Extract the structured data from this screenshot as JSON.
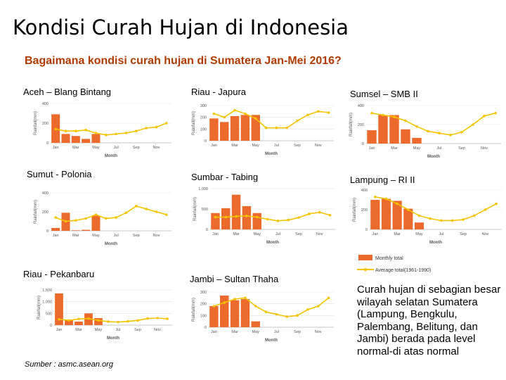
{
  "title": "Kondisi Curah Hujan di Indonesia",
  "subtitle": "Bagaimana kondisi curah hujan di Sumatera Jan-Mei 2016?",
  "legend": [
    "Monthly total",
    "Average total(1961-1990)"
  ],
  "note": "Curah hujan di sebagian besar wilayah selatan Sumatera (Lampung, Bengkulu, Palembang, Belitung, dan Jambi) berada pada level normal-di atas normal",
  "source": "Sumber : asmc.asean.org",
  "chart_data": [
    {
      "type": "bar-line",
      "title": "Aceh – Blang Bintang",
      "y_label": "Rainfall(mm)",
      "x_label": "Month",
      "categories": [
        "Jan",
        null,
        "Mar",
        null,
        "May",
        null,
        "Jul",
        null,
        "Sep",
        null,
        "Nov",
        null
      ],
      "ylim": [
        0,
        400
      ],
      "yticks": [
        0,
        200,
        400
      ],
      "series": [
        {
          "color": "#ec6a2c",
          "values": [
            290,
            90,
            70,
            40,
            90,
            null,
            null,
            null,
            null,
            null,
            null,
            null
          ]
        },
        {
          "color": "#f5c400",
          "values": [
            140,
            120,
            120,
            130,
            100,
            80,
            90,
            100,
            120,
            150,
            160,
            200
          ]
        }
      ]
    },
    {
      "type": "bar-line",
      "title": "Riau - Japura",
      "y_label": "Rainfall(mm)",
      "x_label": "Month",
      "categories": [
        "Jan",
        null,
        "Mar",
        null,
        "May",
        null,
        "Jul",
        null,
        "Sep",
        null,
        "Nov",
        null
      ],
      "ylim": [
        0,
        300
      ],
      "yticks": [
        0,
        100,
        200,
        300
      ],
      "series": [
        {
          "color": "#ec6a2c",
          "values": [
            190,
            160,
            210,
            220,
            220,
            null,
            null,
            null,
            null,
            null,
            null,
            null
          ]
        },
        {
          "color": "#f5c400",
          "values": [
            230,
            200,
            260,
            230,
            190,
            110,
            110,
            110,
            170,
            220,
            250,
            240
          ]
        }
      ]
    },
    {
      "type": "bar-line",
      "title": "Sumsel – SMB II",
      "y_label": "Rainfall(mm)",
      "x_label": "Month",
      "categories": [
        "Jan",
        null,
        "Mar",
        null,
        "May",
        null,
        "Jul",
        null,
        "Sep",
        null,
        "Nov",
        null
      ],
      "ylim": [
        0,
        400
      ],
      "yticks": [
        0,
        200,
        400
      ],
      "series": [
        {
          "color": "#ec6a2c",
          "values": [
            140,
            300,
            300,
            150,
            60,
            null,
            null,
            null,
            null,
            null,
            null,
            null
          ]
        },
        {
          "color": "#f5c400",
          "values": [
            320,
            300,
            280,
            240,
            180,
            130,
            110,
            90,
            120,
            200,
            290,
            320
          ]
        }
      ]
    },
    {
      "type": "bar-line",
      "title": "Sumut - Polonia",
      "y_label": "Rainfall(mm)",
      "x_label": "Month",
      "categories": [
        "Jan",
        null,
        "Mar",
        null,
        "May",
        null,
        "Jul",
        null,
        "Sep",
        null,
        "Nov",
        null
      ],
      "ylim": [
        0,
        400
      ],
      "yticks": [
        0,
        200,
        400
      ],
      "series": [
        {
          "color": "#ec6a2c",
          "values": [
            30,
            190,
            5,
            10,
            160,
            null,
            null,
            null,
            null,
            null,
            null,
            null
          ]
        },
        {
          "color": "#f5c400",
          "values": [
            140,
            100,
            110,
            130,
            170,
            130,
            140,
            190,
            260,
            230,
            200,
            170
          ]
        }
      ]
    },
    {
      "type": "bar-line",
      "title": "Sumbar - Tabing",
      "y_label": "Rainfall(mm)",
      "x_label": "Month",
      "categories": [
        "Jan",
        null,
        "Mar",
        null,
        "May",
        null,
        "Jul",
        null,
        "Sep",
        null,
        "Nov",
        null
      ],
      "ylim": [
        0,
        1000
      ],
      "yticks": [
        0,
        500,
        {
          "value": 1000,
          "label": "1,000"
        }
      ],
      "series": [
        {
          "color": "#ec6a2c",
          "values": [
            400,
            520,
            850,
            570,
            400,
            null,
            null,
            null,
            null,
            null,
            null,
            null
          ]
        },
        {
          "color": "#f5c400",
          "values": [
            300,
            300,
            320,
            330,
            300,
            250,
            210,
            230,
            290,
            380,
            420,
            350
          ]
        }
      ]
    },
    {
      "type": "bar-line",
      "title": "Lampung – RI II",
      "y_label": "Rainfall(mm)",
      "x_label": "Month",
      "categories": [
        "Jan",
        null,
        "Mar",
        null,
        "May",
        null,
        "Jul",
        null,
        "Sep",
        null,
        "Nov",
        null
      ],
      "ylim": [
        0,
        400
      ],
      "yticks": [
        0,
        200,
        400
      ],
      "series": [
        {
          "color": "#ec6a2c",
          "values": [
            300,
            310,
            290,
            210,
            70,
            null,
            null,
            null,
            null,
            null,
            null,
            null
          ]
        },
        {
          "color": "#f5c400",
          "values": [
            330,
            310,
            260,
            200,
            140,
            110,
            90,
            90,
            100,
            140,
            200,
            260
          ]
        }
      ]
    },
    {
      "type": "bar-line",
      "title": "Riau - Pekanbaru",
      "y_label": "Rainfall(mm)",
      "x_label": "Month",
      "categories": [
        "Jan",
        null,
        "Mar",
        null,
        "May",
        null,
        "Jul",
        null,
        "Sep",
        null,
        "Nov",
        null
      ],
      "ylim": [
        0,
        1500
      ],
      "yticks": [
        0,
        500,
        {
          "value": 1000,
          "label": "1,000"
        },
        {
          "value": 1500,
          "label": "1,500"
        }
      ],
      "series": [
        {
          "color": "#ec6a2c",
          "values": [
            1350,
            200,
            150,
            500,
            300,
            null,
            null,
            null,
            null,
            null,
            null,
            null
          ]
        },
        {
          "color": "#f5c400",
          "values": [
            250,
            200,
            260,
            280,
            200,
            150,
            130,
            160,
            200,
            280,
            300,
            270
          ]
        }
      ]
    },
    {
      "type": "bar-line",
      "title": "Jambi – Sultan Thaha",
      "y_label": "Rainfall(mm)",
      "x_label": "Month",
      "categories": [
        "Jan",
        null,
        "Mar",
        null,
        "May",
        null,
        "Jul",
        null,
        "Sep",
        null,
        "Nov",
        null
      ],
      "ylim": [
        0,
        300
      ],
      "yticks": [
        0,
        100,
        200,
        300
      ],
      "series": [
        {
          "color": "#ec6a2c",
          "values": [
            180,
            270,
            230,
            240,
            50,
            null,
            null,
            null,
            null,
            null,
            null,
            null
          ]
        },
        {
          "color": "#f5c400",
          "values": [
            180,
            210,
            240,
            250,
            180,
            130,
            110,
            90,
            100,
            150,
            180,
            250
          ]
        }
      ]
    }
  ]
}
